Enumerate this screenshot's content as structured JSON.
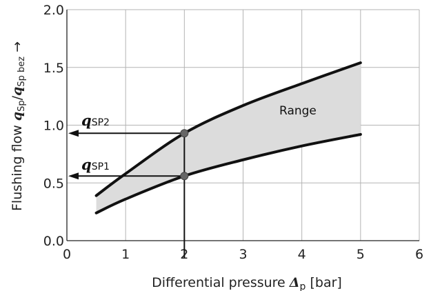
{
  "chart_data": {
    "type": "area",
    "xlim": [
      0,
      6
    ],
    "ylim": [
      0.0,
      2.0
    ],
    "x_ticks": [
      "0",
      "1",
      "2",
      "3",
      "4",
      "5",
      "6"
    ],
    "y_ticks": [
      "0.0",
      "0.5",
      "1.0",
      "1.5",
      "2.0"
    ],
    "grid": true,
    "xlabel": {
      "text": "Differential pressure ",
      "symbol": "Δ",
      "subscript": "p",
      "unit": " [bar]"
    },
    "ylabel": {
      "text": "Flushing flow ",
      "symbol1": "q",
      "sub1": "Sp",
      "slash": "/",
      "symbol2": "q",
      "sub2": "Sp bez",
      "arrow": " →"
    },
    "series": [
      {
        "name": "",
        "x": [
          0.5,
          1.0,
          2.0,
          3.0,
          4.0,
          5.0
        ],
        "y": [
          0.39,
          0.58,
          0.93,
          1.17,
          1.36,
          1.54
        ]
      },
      {
        "name": "",
        "x": [
          0.5,
          1.0,
          2.0,
          3.0,
          4.0,
          5.0
        ],
        "y": [
          0.24,
          0.36,
          0.56,
          0.7,
          0.82,
          0.92
        ]
      }
    ],
    "annotations": {
      "range": {
        "label": "Range"
      },
      "q_sp2": {
        "symbol": "q",
        "subscript": "SP2",
        "x": 2.0,
        "y": 0.93
      },
      "q_sp1": {
        "symbol": "q",
        "subscript": "SP1",
        "x": 2.0,
        "y": 0.56
      }
    }
  }
}
